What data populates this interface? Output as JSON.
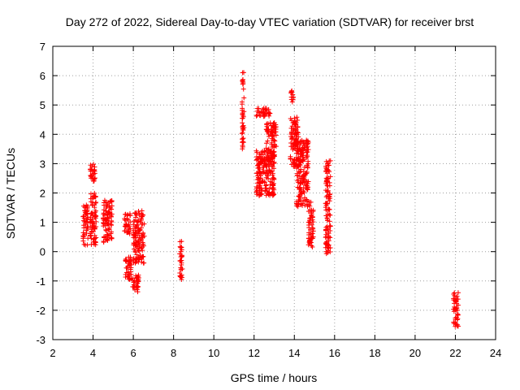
{
  "chart_data": {
    "type": "scatter",
    "title": "Day 272 of 2022, Sidereal Day-to-day VTEC variation (SDTVAR) for receiver brst",
    "xlabel": "GPS time / hours",
    "ylabel": "SDTVAR / TECUs",
    "xlim": [
      2,
      24
    ],
    "ylim": [
      -3,
      7
    ],
    "x_ticks": [
      2,
      4,
      6,
      8,
      10,
      12,
      14,
      16,
      18,
      20,
      22,
      24
    ],
    "y_ticks": [
      -3,
      -2,
      -1,
      0,
      1,
      2,
      3,
      4,
      5,
      6,
      7
    ],
    "grid": true,
    "marker": "plus",
    "series": [
      {
        "name": "SDTVAR",
        "color": "#ff0000",
        "clusters": [
          {
            "x": [
              3.5,
              3.75
            ],
            "y": [
              0.2,
              1.6
            ]
          },
          {
            "x": [
              3.85,
              4.1
            ],
            "y": [
              2.4,
              3.05
            ]
          },
          {
            "x": [
              3.85,
              4.15
            ],
            "y": [
              0.2,
              2.0
            ]
          },
          {
            "x": [
              4.5,
              4.95
            ],
            "y": [
              0.3,
              1.75
            ]
          },
          {
            "x": [
              5.55,
              5.85
            ],
            "y": [
              0.6,
              1.3
            ]
          },
          {
            "x": [
              5.6,
              5.9
            ],
            "y": [
              -0.95,
              -0.15
            ]
          },
          {
            "x": [
              5.95,
              6.3
            ],
            "y": [
              -1.4,
              -0.8
            ]
          },
          {
            "x": [
              6.0,
              6.55
            ],
            "y": [
              -0.4,
              1.4
            ]
          },
          {
            "x": [
              8.3,
              8.45
            ],
            "y": [
              -1.0,
              0.35
            ]
          },
          {
            "x": [
              11.4,
              11.5
            ],
            "y": [
              3.4,
              6.2
            ]
          },
          {
            "x": [
              12.1,
              12.8
            ],
            "y": [
              4.6,
              4.9
            ]
          },
          {
            "x": [
              12.1,
              13.0
            ],
            "y": [
              1.9,
              3.5
            ]
          },
          {
            "x": [
              12.6,
              13.1
            ],
            "y": [
              3.0,
              4.4
            ]
          },
          {
            "x": [
              13.8,
              14.2
            ],
            "y": [
              2.9,
              4.6
            ]
          },
          {
            "x": [
              13.8,
              13.95
            ],
            "y": [
              5.1,
              5.5
            ]
          },
          {
            "x": [
              14.1,
              14.7
            ],
            "y": [
              1.5,
              3.8
            ]
          },
          {
            "x": [
              14.7,
              14.95
            ],
            "y": [
              0.1,
              1.7
            ]
          },
          {
            "x": [
              15.55,
              15.8
            ],
            "y": [
              -0.1,
              3.1
            ]
          },
          {
            "x": [
              21.9,
              22.15
            ],
            "y": [
              -2.6,
              -1.4
            ]
          }
        ]
      }
    ]
  }
}
